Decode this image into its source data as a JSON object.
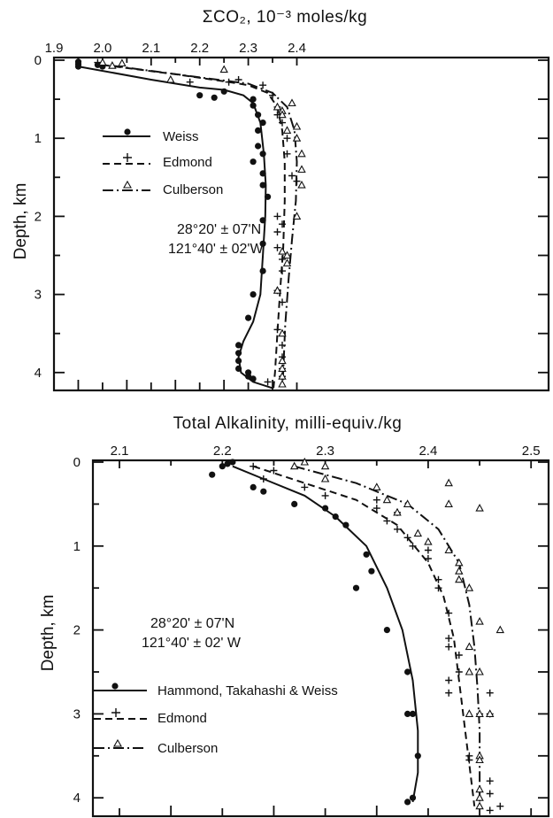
{
  "chart_data": [
    {
      "type": "scatter",
      "title": "ΣCO₂, 10⁻³ moles/kg",
      "xlabel": "ΣCO₂, 10⁻³ moles/kg",
      "ylabel": "Depth, km",
      "xlim": [
        1.9,
        2.41
      ],
      "ylim": [
        0,
        4.2
      ],
      "x_ticks_labeled": [
        "1.9",
        "2.0",
        "2.1",
        "2.2",
        "2.3",
        "2.4"
      ],
      "y_ticks_labeled": [
        "0",
        "1",
        "2",
        "3",
        "4"
      ],
      "annotation": [
        "28°20' ± 07'N",
        "121°40' ± 02'W"
      ],
      "legend_position": "left",
      "series": [
        {
          "name": "Weiss",
          "marker": "dot",
          "line": "solid",
          "points": [
            [
              1.95,
              0.02
            ],
            [
              1.95,
              0.05
            ],
            [
              1.95,
              0.08
            ],
            [
              1.99,
              0.06
            ],
            [
              2.0,
              0.08
            ],
            [
              2.2,
              0.45
            ],
            [
              2.23,
              0.48
            ],
            [
              2.25,
              0.4
            ],
            [
              2.31,
              0.5
            ],
            [
              2.31,
              0.58
            ],
            [
              2.32,
              0.7
            ],
            [
              2.33,
              0.8
            ],
            [
              2.32,
              0.9
            ],
            [
              2.32,
              1.1
            ],
            [
              2.33,
              1.2
            ],
            [
              2.31,
              1.3
            ],
            [
              2.33,
              1.45
            ],
            [
              2.33,
              1.6
            ],
            [
              2.34,
              1.75
            ],
            [
              2.33,
              2.05
            ],
            [
              2.33,
              2.35
            ],
            [
              2.33,
              2.7
            ],
            [
              2.31,
              3.0
            ],
            [
              2.3,
              3.3
            ],
            [
              2.28,
              3.65
            ],
            [
              2.28,
              3.75
            ],
            [
              2.28,
              3.85
            ],
            [
              2.28,
              3.95
            ],
            [
              2.3,
              4.0
            ],
            [
              2.3,
              4.05
            ],
            [
              2.31,
              4.08
            ]
          ],
          "curve": [
            [
              1.95,
              0.08
            ],
            [
              2.1,
              0.25
            ],
            [
              2.2,
              0.35
            ],
            [
              2.25,
              0.38
            ],
            [
              2.29,
              0.45
            ],
            [
              2.31,
              0.55
            ],
            [
              2.325,
              0.8
            ],
            [
              2.332,
              1.2
            ],
            [
              2.336,
              1.6
            ],
            [
              2.335,
              2.0
            ],
            [
              2.33,
              2.5
            ],
            [
              2.325,
              3.0
            ],
            [
              2.31,
              3.35
            ],
            [
              2.29,
              3.6
            ],
            [
              2.28,
              3.8
            ],
            [
              2.285,
              4.0
            ],
            [
              2.31,
              4.12
            ],
            [
              2.35,
              4.2
            ]
          ]
        },
        {
          "name": "Edmond",
          "marker": "plus",
          "line": "dashed",
          "points": [
            [
              1.99,
              0.03
            ],
            [
              2.0,
              0.06
            ],
            [
              2.18,
              0.28
            ],
            [
              2.26,
              0.28
            ],
            [
              2.28,
              0.25
            ],
            [
              2.33,
              0.32
            ],
            [
              2.35,
              0.45
            ],
            [
              2.36,
              0.6
            ],
            [
              2.36,
              0.7
            ],
            [
              2.37,
              0.8
            ],
            [
              2.38,
              1.0
            ],
            [
              2.38,
              1.2
            ],
            [
              2.39,
              1.48
            ],
            [
              2.4,
              1.55
            ],
            [
              2.36,
              2.0
            ],
            [
              2.37,
              2.1
            ],
            [
              2.36,
              2.2
            ],
            [
              2.36,
              2.4
            ],
            [
              2.37,
              2.55
            ],
            [
              2.37,
              2.7
            ],
            [
              2.36,
              2.95
            ],
            [
              2.37,
              3.1
            ],
            [
              2.36,
              3.45
            ],
            [
              2.37,
              3.65
            ],
            [
              2.37,
              3.8
            ],
            [
              2.37,
              3.95
            ],
            [
              2.37,
              4.05
            ],
            [
              2.34,
              4.12
            ]
          ],
          "curve": [
            [
              2.0,
              0.06
            ],
            [
              2.15,
              0.18
            ],
            [
              2.25,
              0.27
            ],
            [
              2.3,
              0.32
            ],
            [
              2.34,
              0.42
            ],
            [
              2.36,
              0.6
            ],
            [
              2.37,
              0.9
            ],
            [
              2.375,
              1.3
            ],
            [
              2.375,
              1.8
            ],
            [
              2.372,
              2.4
            ],
            [
              2.365,
              3.0
            ],
            [
              2.36,
              3.5
            ],
            [
              2.355,
              4.0
            ],
            [
              2.352,
              4.2
            ]
          ]
        },
        {
          "name": "Culberson",
          "marker": "triangle",
          "line": "dashdot",
          "points": [
            [
              2.0,
              0.03
            ],
            [
              2.02,
              0.07
            ],
            [
              2.04,
              0.04
            ],
            [
              2.14,
              0.25
            ],
            [
              2.25,
              0.12
            ],
            [
              2.36,
              0.6
            ],
            [
              2.37,
              0.65
            ],
            [
              2.37,
              0.7
            ],
            [
              2.39,
              0.55
            ],
            [
              2.38,
              0.9
            ],
            [
              2.4,
              0.85
            ],
            [
              2.4,
              1.0
            ],
            [
              2.41,
              1.2
            ],
            [
              2.41,
              1.4
            ],
            [
              2.41,
              1.6
            ],
            [
              2.4,
              2.0
            ],
            [
              2.37,
              2.45
            ],
            [
              2.38,
              2.5
            ],
            [
              2.38,
              2.6
            ],
            [
              2.36,
              2.95
            ],
            [
              2.37,
              3.5
            ],
            [
              2.37,
              3.85
            ],
            [
              2.37,
              3.95
            ],
            [
              2.37,
              4.05
            ],
            [
              2.37,
              4.15
            ]
          ],
          "curve": [
            [
              2.02,
              0.07
            ],
            [
              2.2,
              0.22
            ],
            [
              2.3,
              0.3
            ],
            [
              2.35,
              0.42
            ],
            [
              2.38,
              0.6
            ],
            [
              2.395,
              0.9
            ],
            [
              2.4,
              1.3
            ],
            [
              2.398,
              1.8
            ],
            [
              2.39,
              2.3
            ],
            [
              2.383,
              2.8
            ],
            [
              2.376,
              3.4
            ],
            [
              2.372,
              4.0
            ],
            [
              2.37,
              4.2
            ]
          ]
        }
      ]
    },
    {
      "type": "scatter",
      "title": "Total Alkalinity, milli-equiv./kg",
      "xlabel": "Total Alkalinity, milli-equiv./kg",
      "ylabel": "Depth, km",
      "xlim": [
        2.05,
        2.5
      ],
      "ylim": [
        0,
        4.2
      ],
      "x_ticks_labeled": [
        "2.1",
        "2.2",
        "2.3",
        "2.4",
        "2.5"
      ],
      "y_ticks_labeled": [
        "0",
        "1",
        "2",
        "3",
        "4"
      ],
      "annotation": [
        "28°20' ± 07'N",
        "121°40' ± 02' W"
      ],
      "legend_position": "bottom-left",
      "series": [
        {
          "name": "Hammond, Takahashi & Weiss",
          "marker": "dot",
          "line": "solid",
          "points": [
            [
              2.2,
              0.05
            ],
            [
              2.205,
              0.02
            ],
            [
              2.21,
              0.0
            ],
            [
              2.19,
              0.15
            ],
            [
              2.23,
              0.3
            ],
            [
              2.24,
              0.35
            ],
            [
              2.27,
              0.5
            ],
            [
              2.3,
              0.55
            ],
            [
              2.31,
              0.65
            ],
            [
              2.32,
              0.75
            ],
            [
              2.34,
              1.1
            ],
            [
              2.345,
              1.3
            ],
            [
              2.33,
              1.5
            ],
            [
              2.36,
              2.0
            ],
            [
              2.38,
              2.5
            ],
            [
              2.385,
              3.0
            ],
            [
              2.38,
              3.0
            ],
            [
              2.39,
              3.5
            ],
            [
              2.385,
              4.0
            ],
            [
              2.38,
              4.05
            ]
          ],
          "curve": [
            [
              2.21,
              0.05
            ],
            [
              2.24,
              0.2
            ],
            [
              2.28,
              0.4
            ],
            [
              2.31,
              0.65
            ],
            [
              2.34,
              1.0
            ],
            [
              2.36,
              1.5
            ],
            [
              2.375,
              2.0
            ],
            [
              2.385,
              2.6
            ],
            [
              2.39,
              3.2
            ],
            [
              2.39,
              3.7
            ],
            [
              2.385,
              4.05
            ]
          ]
        },
        {
          "name": "Edmond",
          "marker": "plus",
          "line": "dashed",
          "points": [
            [
              2.23,
              0.05
            ],
            [
              2.25,
              0.1
            ],
            [
              2.24,
              0.2
            ],
            [
              2.28,
              0.3
            ],
            [
              2.3,
              0.4
            ],
            [
              2.35,
              0.45
            ],
            [
              2.35,
              0.55
            ],
            [
              2.37,
              0.6
            ],
            [
              2.36,
              0.7
            ],
            [
              2.37,
              0.8
            ],
            [
              2.38,
              0.9
            ],
            [
              2.385,
              1.0
            ],
            [
              2.4,
              1.05
            ],
            [
              2.4,
              1.15
            ],
            [
              2.41,
              1.4
            ],
            [
              2.41,
              1.5
            ],
            [
              2.42,
              1.8
            ],
            [
              2.42,
              2.1
            ],
            [
              2.42,
              2.2
            ],
            [
              2.43,
              2.3
            ],
            [
              2.43,
              2.5
            ],
            [
              2.42,
              2.6
            ],
            [
              2.42,
              2.75
            ],
            [
              2.46,
              2.75
            ],
            [
              2.45,
              3.0
            ],
            [
              2.46,
              3.0
            ],
            [
              2.44,
              3.5
            ],
            [
              2.44,
              3.55
            ],
            [
              2.46,
              3.8
            ],
            [
              2.46,
              3.95
            ],
            [
              2.47,
              4.1
            ],
            [
              2.46,
              4.15
            ]
          ],
          "curve": [
            [
              2.23,
              0.05
            ],
            [
              2.28,
              0.25
            ],
            [
              2.33,
              0.45
            ],
            [
              2.37,
              0.75
            ],
            [
              2.4,
              1.2
            ],
            [
              2.415,
              1.6
            ],
            [
              2.425,
              2.1
            ],
            [
              2.43,
              2.6
            ],
            [
              2.435,
              3.1
            ],
            [
              2.44,
              3.6
            ],
            [
              2.445,
              4.1
            ]
          ]
        },
        {
          "name": "Culberson",
          "marker": "triangle",
          "line": "dashdot",
          "points": [
            [
              2.27,
              0.05
            ],
            [
              2.28,
              0.0
            ],
            [
              2.3,
              0.05
            ],
            [
              2.3,
              0.2
            ],
            [
              2.35,
              0.3
            ],
            [
              2.42,
              0.25
            ],
            [
              2.36,
              0.45
            ],
            [
              2.38,
              0.5
            ],
            [
              2.37,
              0.6
            ],
            [
              2.42,
              0.5
            ],
            [
              2.45,
              0.55
            ],
            [
              2.39,
              0.85
            ],
            [
              2.4,
              0.95
            ],
            [
              2.42,
              1.05
            ],
            [
              2.43,
              1.2
            ],
            [
              2.43,
              1.3
            ],
            [
              2.43,
              1.4
            ],
            [
              2.44,
              1.5
            ],
            [
              2.45,
              1.9
            ],
            [
              2.47,
              2.0
            ],
            [
              2.44,
              2.2
            ],
            [
              2.44,
              2.5
            ],
            [
              2.45,
              2.5
            ],
            [
              2.45,
              3.0
            ],
            [
              2.44,
              3.0
            ],
            [
              2.46,
              3.0
            ],
            [
              2.45,
              3.5
            ],
            [
              2.45,
              3.55
            ],
            [
              2.45,
              3.9
            ],
            [
              2.45,
              4.0
            ],
            [
              2.45,
              4.1
            ]
          ],
          "curve": [
            [
              2.27,
              0.05
            ],
            [
              2.33,
              0.25
            ],
            [
              2.38,
              0.5
            ],
            [
              2.41,
              0.8
            ],
            [
              2.43,
              1.2
            ],
            [
              2.44,
              1.7
            ],
            [
              2.445,
              2.2
            ],
            [
              2.448,
              2.7
            ],
            [
              2.45,
              3.2
            ],
            [
              2.45,
              3.7
            ],
            [
              2.45,
              4.1
            ]
          ]
        }
      ]
    }
  ]
}
